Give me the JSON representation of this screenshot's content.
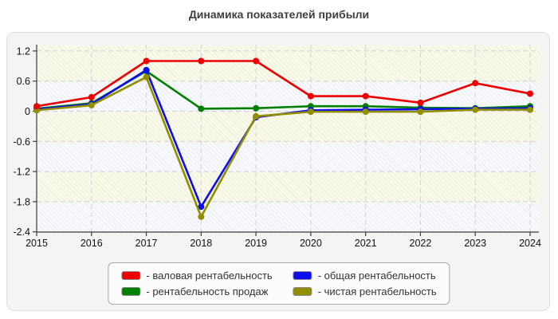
{
  "title": "Динамика показателей прибыли",
  "legend": {
    "prefix": "- "
  },
  "chart_data": {
    "type": "line",
    "title": "Динамика показателей прибыли",
    "categories": [
      "2015",
      "2016",
      "2017",
      "2018",
      "2019",
      "2020",
      "2021",
      "2022",
      "2023",
      "2024"
    ],
    "series": [
      {
        "name": "валовая рентабельность",
        "color": "#ee0000",
        "values": [
          0.1,
          0.28,
          1.0,
          1.0,
          1.0,
          0.3,
          0.3,
          0.17,
          0.56,
          0.35
        ]
      },
      {
        "name": "общая рентабельность",
        "color": "#0d0dee",
        "values": [
          0.04,
          0.14,
          0.82,
          -1.9,
          -0.12,
          0.02,
          0.03,
          0.04,
          0.05,
          0.06
        ]
      },
      {
        "name": "рентабельность продаж",
        "color": "#008000",
        "values": [
          0.05,
          0.16,
          0.8,
          0.05,
          0.06,
          0.1,
          0.1,
          0.07,
          0.06,
          0.1
        ]
      },
      {
        "name": "чистая рентабельность",
        "color": "#918e00",
        "values": [
          0.02,
          0.12,
          0.68,
          -2.1,
          -0.1,
          -0.01,
          -0.01,
          -0.01,
          0.03,
          0.03
        ]
      }
    ],
    "draw_order": [
      2,
      1,
      3,
      0
    ],
    "xlabel": "",
    "ylabel": "",
    "ylim": [
      -2.4,
      1.2
    ],
    "ytick_step": 0.6,
    "ytick_labels": [
      "1.2",
      "0.6",
      "0",
      "-0.6",
      "-1.2",
      "-1.8",
      "-2.4"
    ],
    "grid": true,
    "grid_style": "dashed",
    "legend_position": "bottom"
  }
}
